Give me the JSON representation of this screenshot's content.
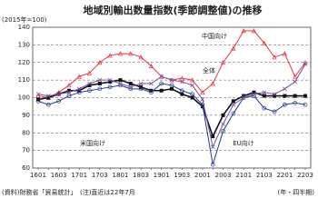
{
  "chart_data": {
    "type": "line",
    "title": "地域別輸出数量指数(季節調整値)の推移",
    "y_unit": "(2015年=100)",
    "x_unit": "(年・四半期)",
    "source": "(資料)財務省「貿易統計」　(注)直近は22年7月",
    "categories": [
      "1601",
      null,
      "1603",
      null,
      "1701",
      null,
      "1703",
      null,
      "1801",
      null,
      "1803",
      null,
      "1901",
      null,
      "1903",
      null,
      "2001",
      null,
      "2003",
      null,
      "2101",
      null,
      "2103",
      null,
      "2201",
      null,
      "2203"
    ],
    "ylim": [
      60,
      140
    ],
    "yticks": [
      60,
      70,
      80,
      90,
      100,
      110,
      120,
      130,
      140
    ],
    "grid": true,
    "series": [
      {
        "name": "中国向け",
        "color": "#e8363a",
        "marker": "triangle",
        "values": [
          101,
          100,
          103,
          107,
          112,
          114,
          120,
          124,
          125,
          125,
          123,
          118,
          112,
          110,
          111,
          110,
          103,
          108,
          120,
          128,
          138,
          138,
          131,
          123,
          125,
          112,
          120
        ]
      },
      {
        "name": "全体",
        "color": "#111111",
        "marker": "square",
        "values": [
          99,
          100,
          102,
          104,
          104,
          107,
          108,
          109,
          110,
          108,
          106,
          104,
          104,
          105,
          102,
          100,
          95,
          78,
          90,
          98,
          101,
          103,
          101,
          101,
          101,
          101,
          101
        ]
      },
      {
        "name": "米国向け",
        "color": "#1f3c8c",
        "marker": "circle",
        "values": [
          98,
          96,
          98,
          101,
          103,
          104,
          105,
          106,
          107,
          105,
          105,
          103,
          108,
          107,
          104,
          102,
          96,
          62,
          81,
          91,
          100,
          101,
          94,
          92,
          96,
          97,
          96
        ]
      },
      {
        "name": "EU向け",
        "color": "#7a4fa8",
        "marker": "cross",
        "values": [
          102,
          101,
          102,
          103,
          105,
          108,
          110,
          110,
          108,
          106,
          108,
          108,
          112,
          110,
          109,
          107,
          99,
          72,
          85,
          96,
          100,
          102,
          103,
          102,
          105,
          109,
          119
        ]
      }
    ]
  }
}
